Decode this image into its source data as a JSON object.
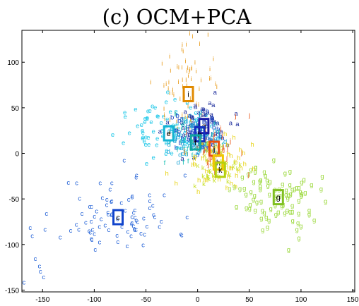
{
  "chart_data": {
    "type": "scatter",
    "title": "(c) OCM+PCA",
    "xlabel": "",
    "ylabel": "",
    "xlim": [
      -170,
      152
    ],
    "ylim": [
      -152,
      135
    ],
    "xticks": [
      -150,
      -100,
      -50,
      0,
      50,
      100,
      150
    ],
    "yticks": [
      -150,
      -100,
      -50,
      0,
      50,
      100
    ],
    "grid": false,
    "marker_style": "letters",
    "clusters": [
      {
        "letter": "c",
        "color": "#1f5fd6",
        "box_color": "#1144cc",
        "center": [
          -77,
          -70
        ],
        "spread": [
          28,
          22
        ],
        "count": 85,
        "seed": 11,
        "extra": [
          [
            -162,
            -84
          ],
          [
            -160,
            -93
          ],
          [
            -157,
            -118
          ],
          [
            -152,
            -132
          ],
          [
            -149,
            -138
          ],
          [
            -153,
            -126
          ],
          [
            -168,
            -144
          ]
        ]
      },
      {
        "letter": "e",
        "color": "#22c8e8",
        "box_color": "#14b4d4",
        "center": [
          -28,
          22
        ],
        "spread": [
          20,
          14
        ],
        "count": 90,
        "seed": 23,
        "extra": [
          [
            -70,
            38
          ],
          [
            -60,
            46
          ],
          [
            -48,
            44
          ],
          [
            -66,
            20
          ],
          [
            -58,
            28
          ]
        ]
      },
      {
        "letter": "g",
        "color": "#9ad83a",
        "box_color": "#80c020",
        "center": [
          78,
          -48
        ],
        "spread": [
          20,
          16
        ],
        "count": 85,
        "seed": 37,
        "extra": [
          [
            96,
            -86
          ],
          [
            98,
            -95
          ],
          [
            88,
            -108
          ],
          [
            100,
            -82
          ],
          [
            92,
            -76
          ]
        ]
      },
      {
        "letter": "i",
        "color": "#e89a18",
        "box_color": "#e08a00",
        "center": [
          -8,
          66
        ],
        "spread": [
          16,
          26
        ],
        "count": 70,
        "seed": 41,
        "extra": [
          [
            -5,
            126
          ],
          [
            10,
            128
          ],
          [
            -14,
            110
          ],
          [
            2,
            118
          ]
        ]
      },
      {
        "letter": "a",
        "color": "#1c2c9c",
        "box_color": "#1a1aa8",
        "center": [
          6,
          30
        ],
        "spread": [
          16,
          16
        ],
        "count": 60,
        "seed": 53,
        "extra": []
      },
      {
        "letter": "b",
        "color": "#1a44c4",
        "box_color": "#1030c0",
        "center": [
          -2,
          20
        ],
        "spread": [
          13,
          13
        ],
        "count": 55,
        "seed": 61,
        "extra": []
      },
      {
        "letter": "d",
        "color": "#26a8d8",
        "box_color": "#1894c8",
        "center": [
          -4,
          12
        ],
        "spread": [
          14,
          12
        ],
        "count": 50,
        "seed": 67,
        "extra": []
      },
      {
        "letter": "f",
        "color": "#18c0b4",
        "box_color": "#10a8a0",
        "center": [
          -2,
          12
        ],
        "spread": [
          14,
          12
        ],
        "count": 45,
        "seed": 71,
        "extra": []
      },
      {
        "letter": "h",
        "color": "#e8d41a",
        "box_color": "#f0c800",
        "center": [
          20,
          -10
        ],
        "spread": [
          16,
          14
        ],
        "count": 55,
        "seed": 79,
        "extra": []
      },
      {
        "letter": "j",
        "color": "#e8561a",
        "box_color": "#e85010",
        "center": [
          16,
          4
        ],
        "spread": [
          14,
          14
        ],
        "count": 45,
        "seed": 83,
        "extra": []
      },
      {
        "letter": "k",
        "color": "#c8e02a",
        "box_color": "#b4d010",
        "center": [
          22,
          -18
        ],
        "spread": [
          14,
          12
        ],
        "count": 35,
        "seed": 89,
        "extra": []
      }
    ],
    "centroids": [
      {
        "letter": "c",
        "x": -77,
        "y": -70
      },
      {
        "letter": "e",
        "x": -28,
        "y": 22
      },
      {
        "letter": "g",
        "x": 78,
        "y": -48
      },
      {
        "letter": "i",
        "x": -9,
        "y": 65
      },
      {
        "letter": "a",
        "x": 6,
        "y": 30
      },
      {
        "letter": "b",
        "x": 2,
        "y": 21
      },
      {
        "letter": "f",
        "x": -2,
        "y": 12
      },
      {
        "letter": "j",
        "x": 16,
        "y": 5
      },
      {
        "letter": "h",
        "x": 20,
        "y": -10
      },
      {
        "letter": "k",
        "x": 22,
        "y": -18
      }
    ]
  }
}
